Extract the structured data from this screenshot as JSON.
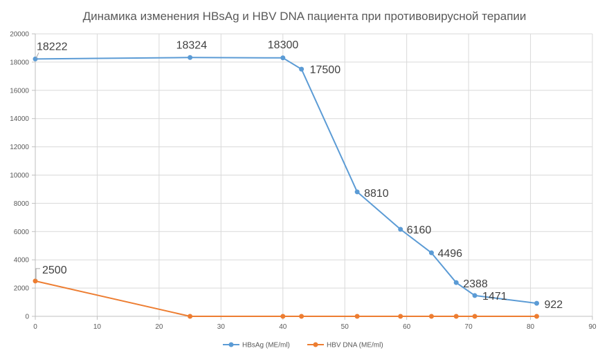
{
  "chart_data": {
    "type": "scatter",
    "title": "Динамика изменения HBsAg и HBV DNA пациента при противовирусной терапии",
    "xlim": [
      0,
      90
    ],
    "ylim": [
      0,
      20000
    ],
    "x_ticks": [
      "0",
      "10",
      "20",
      "30",
      "40",
      "50",
      "60",
      "70",
      "80",
      "90"
    ],
    "y_ticks": [
      "0",
      "2000",
      "4000",
      "6000",
      "8000",
      "10000",
      "12000",
      "14000",
      "16000",
      "18000",
      "20000"
    ],
    "grid": true,
    "legend_position": "bottom",
    "series": [
      {
        "name": "HBsAg (ME/ml)",
        "color": "#5B9BD5",
        "x": [
          0,
          25,
          40,
          43,
          52,
          59,
          64,
          68,
          71,
          81
        ],
        "y": [
          18222,
          18324,
          18300,
          17500,
          8810,
          6160,
          4496,
          2388,
          1471,
          922
        ],
        "labels": [
          "18222",
          "18324",
          "18300",
          "17500",
          "8810",
          "6160",
          "4496",
          "2388",
          "1471",
          "922"
        ]
      },
      {
        "name": "HBV DNA (ME/ml)",
        "color": "#ED7D31",
        "x": [
          0,
          25,
          40,
          43,
          52,
          59,
          64,
          68,
          71,
          81
        ],
        "y": [
          2500,
          0,
          0,
          0,
          0,
          0,
          0,
          0,
          0,
          0
        ],
        "labels": [
          "2500"
        ]
      }
    ]
  }
}
